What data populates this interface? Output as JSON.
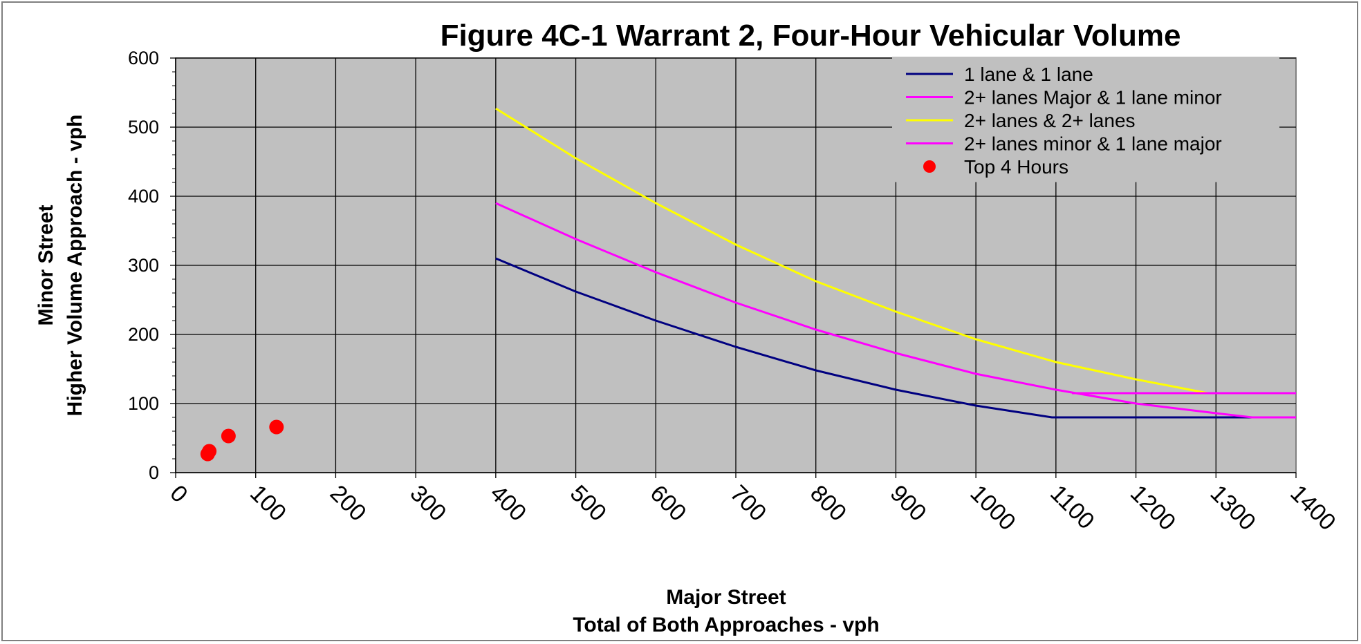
{
  "chart_data": {
    "type": "line",
    "title": "Figure 4C-1 Warrant 2, Four-Hour Vehicular Volume",
    "xlabel": [
      "Major Street",
      "Total of Both Approaches - vph"
    ],
    "ylabel": [
      "Minor Street",
      "Higher Volume Approach - vph"
    ],
    "xlim": [
      0,
      1400
    ],
    "ylim": [
      0,
      600
    ],
    "xticks": [
      "0",
      "100",
      "200",
      "300",
      "400",
      "500",
      "600",
      "700",
      "800",
      "900",
      "1000",
      "1100",
      "1200",
      "1300",
      "1400"
    ],
    "yticks": [
      "0",
      "100",
      "200",
      "300",
      "400",
      "500",
      "600"
    ],
    "grid": true,
    "legend_position": "top-right",
    "plot_background": "#c0c0c0",
    "series": [
      {
        "name": "1 lane & 1 lane",
        "kind": "line",
        "color": "#000080",
        "x": [
          400,
          500,
          600,
          700,
          800,
          900,
          1000,
          1095,
          1400
        ],
        "y": [
          310,
          262,
          220,
          182,
          148,
          120,
          97,
          80,
          80
        ]
      },
      {
        "name": "2+ lanes Major & 1 lane minor",
        "kind": "line",
        "color": "#ff00ff",
        "x": [
          400,
          500,
          600,
          700,
          800,
          900,
          1000,
          1100,
          1200,
          1300,
          1345,
          1400
        ],
        "y": [
          390,
          338,
          290,
          246,
          207,
          173,
          143,
          120,
          100,
          86,
          80,
          80
        ]
      },
      {
        "name": "2+ lanes & 2+ lanes",
        "kind": "line",
        "color": "#ffff00",
        "x": [
          400,
          500,
          600,
          700,
          800,
          900,
          1000,
          1100,
          1200,
          1290
        ],
        "y": [
          527,
          455,
          390,
          330,
          277,
          233,
          193,
          160,
          135,
          115
        ]
      },
      {
        "name": "2+ lanes minor & 1 lane major",
        "kind": "line",
        "color": "#ff00ff",
        "x": [
          1120,
          1400
        ],
        "y": [
          115,
          115
        ]
      },
      {
        "name": "Top 4 Hours",
        "kind": "scatter",
        "color": "#ff0000",
        "x": [
          40,
          42,
          66,
          126
        ],
        "y": [
          27,
          31,
          53,
          66
        ]
      }
    ]
  }
}
